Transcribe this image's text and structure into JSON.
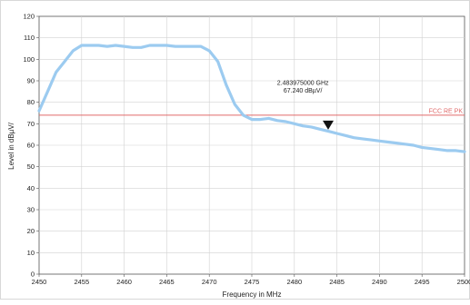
{
  "chart_data": {
    "type": "line",
    "title": "",
    "xlabel": "Frequency in MHz",
    "ylabel": "Level in dBµV/",
    "xlim": [
      2450,
      2500
    ],
    "ylim": [
      0,
      120
    ],
    "x_ticks": [
      2450,
      2455,
      2460,
      2465,
      2470,
      2475,
      2480,
      2485,
      2490,
      2495,
      2500
    ],
    "y_ticks": [
      0,
      10,
      20,
      30,
      40,
      50,
      60,
      70,
      80,
      90,
      100,
      110,
      120
    ],
    "grid": true,
    "series": [
      {
        "color": "#9ccbf0",
        "x": [
          2450,
          2451,
          2452,
          2453,
          2454,
          2455,
          2456,
          2457,
          2458,
          2459,
          2460,
          2461,
          2462,
          2463,
          2464,
          2465,
          2466,
          2467,
          2468,
          2469,
          2470,
          2471,
          2472,
          2473,
          2474,
          2475,
          2476,
          2477,
          2478,
          2479,
          2480,
          2481,
          2482,
          2483,
          2484,
          2485,
          2486,
          2487,
          2488,
          2489,
          2490,
          2491,
          2492,
          2493,
          2494,
          2495,
          2496,
          2497,
          2498,
          2499,
          2500
        ],
        "y": [
          76,
          85,
          94,
          99,
          104,
          106.5,
          106.5,
          106.5,
          106,
          106.5,
          106,
          105.5,
          105.5,
          106.5,
          106.5,
          106.5,
          106,
          106,
          106,
          106,
          104,
          99,
          88,
          79,
          74,
          72,
          72,
          72.5,
          71.5,
          71,
          70,
          69,
          68.5,
          67.5,
          66.5,
          65.5,
          64.5,
          63.5,
          63,
          62.5,
          62,
          61.5,
          61,
          60.5,
          60,
          59,
          58.5,
          58,
          57.5,
          57.5,
          57
        ]
      }
    ],
    "limit_line": {
      "label": "FCC RE PK",
      "value": 74,
      "color": "#e06a6a"
    },
    "marker": {
      "x": 2483.975,
      "y": 67.24,
      "line1": "2.483975000 GHz",
      "line2": "67.240 dBµV/"
    }
  }
}
